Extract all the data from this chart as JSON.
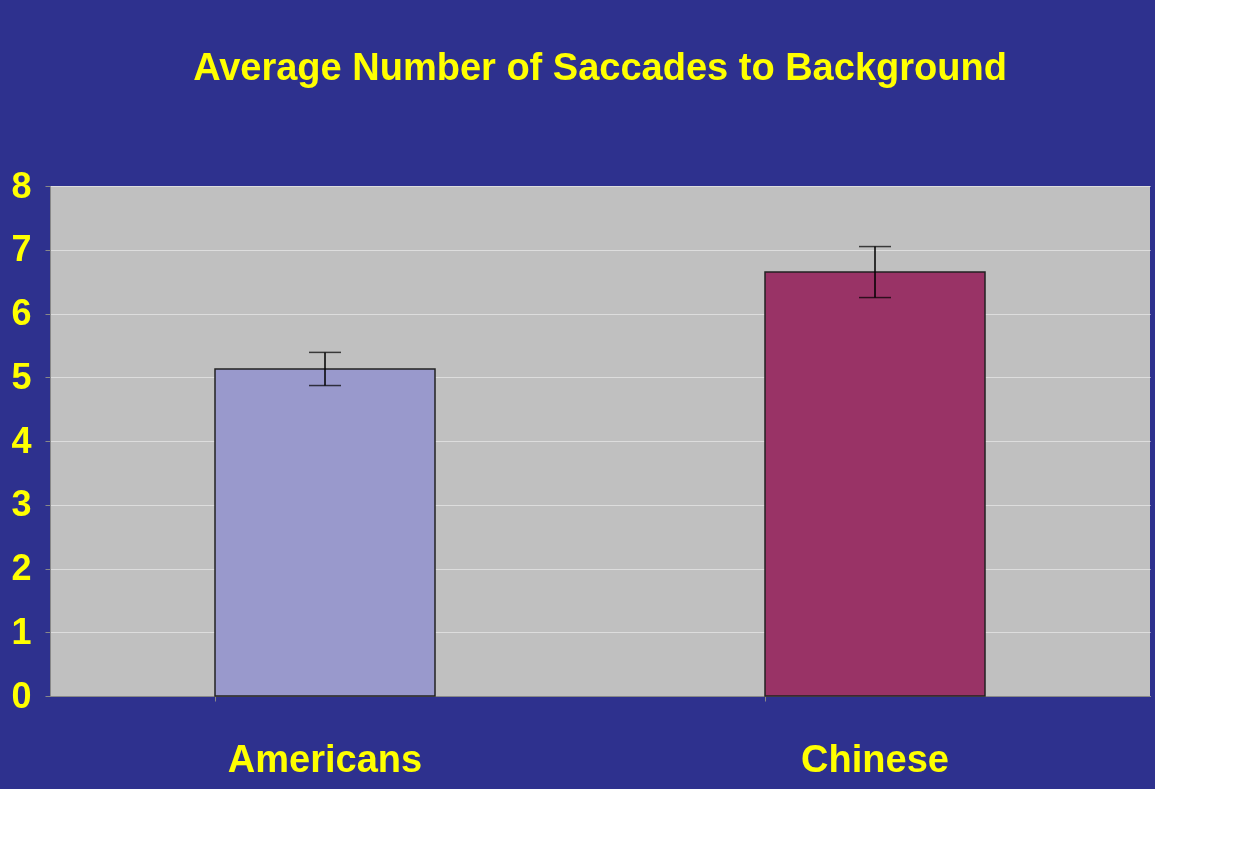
{
  "chart_data": {
    "type": "bar",
    "title": "Average Number of Saccades to Background",
    "categories": [
      "Americans",
      "Chinese"
    ],
    "values": [
      5.13,
      6.65
    ],
    "errors": [
      0.26,
      0.4
    ],
    "colors": [
      "#9999cc",
      "#993366"
    ],
    "ylim": [
      0,
      8
    ],
    "yticks": [
      0,
      1,
      2,
      3,
      4,
      5,
      6,
      7,
      8
    ],
    "grid": "y"
  }
}
